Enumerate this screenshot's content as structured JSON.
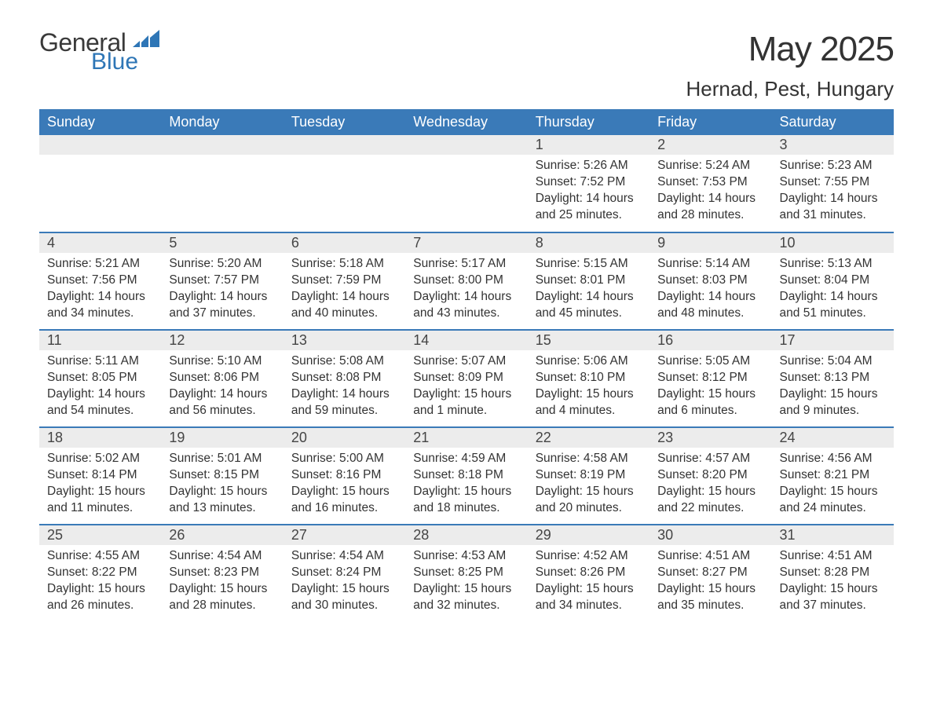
{
  "brand": {
    "word1": "General",
    "word2": "Blue"
  },
  "title": "May 2025",
  "location": "Hernad, Pest, Hungary",
  "colors": {
    "header_bg": "#3a7ab8",
    "header_text": "#ffffff",
    "daynum_bg": "#ececec",
    "daynum_text": "#454545",
    "body_text": "#333333",
    "row_border": "#3a7ab8",
    "brand_accent": "#2e76b6",
    "page_bg": "#ffffff"
  },
  "typography": {
    "month_title_pt": 44,
    "location_pt": 26,
    "weekday_header_pt": 18,
    "daynum_pt": 18,
    "body_pt": 15.5,
    "font_family": "Arial"
  },
  "calendar": {
    "type": "table",
    "columns": [
      "Sunday",
      "Monday",
      "Tuesday",
      "Wednesday",
      "Thursday",
      "Friday",
      "Saturday"
    ],
    "weeks": [
      [
        null,
        null,
        null,
        null,
        {
          "n": "1",
          "sunrise": "5:26 AM",
          "sunset": "7:52 PM",
          "daylight": "14 hours and 25 minutes."
        },
        {
          "n": "2",
          "sunrise": "5:24 AM",
          "sunset": "7:53 PM",
          "daylight": "14 hours and 28 minutes."
        },
        {
          "n": "3",
          "sunrise": "5:23 AM",
          "sunset": "7:55 PM",
          "daylight": "14 hours and 31 minutes."
        }
      ],
      [
        {
          "n": "4",
          "sunrise": "5:21 AM",
          "sunset": "7:56 PM",
          "daylight": "14 hours and 34 minutes."
        },
        {
          "n": "5",
          "sunrise": "5:20 AM",
          "sunset": "7:57 PM",
          "daylight": "14 hours and 37 minutes."
        },
        {
          "n": "6",
          "sunrise": "5:18 AM",
          "sunset": "7:59 PM",
          "daylight": "14 hours and 40 minutes."
        },
        {
          "n": "7",
          "sunrise": "5:17 AM",
          "sunset": "8:00 PM",
          "daylight": "14 hours and 43 minutes."
        },
        {
          "n": "8",
          "sunrise": "5:15 AM",
          "sunset": "8:01 PM",
          "daylight": "14 hours and 45 minutes."
        },
        {
          "n": "9",
          "sunrise": "5:14 AM",
          "sunset": "8:03 PM",
          "daylight": "14 hours and 48 minutes."
        },
        {
          "n": "10",
          "sunrise": "5:13 AM",
          "sunset": "8:04 PM",
          "daylight": "14 hours and 51 minutes."
        }
      ],
      [
        {
          "n": "11",
          "sunrise": "5:11 AM",
          "sunset": "8:05 PM",
          "daylight": "14 hours and 54 minutes."
        },
        {
          "n": "12",
          "sunrise": "5:10 AM",
          "sunset": "8:06 PM",
          "daylight": "14 hours and 56 minutes."
        },
        {
          "n": "13",
          "sunrise": "5:08 AM",
          "sunset": "8:08 PM",
          "daylight": "14 hours and 59 minutes."
        },
        {
          "n": "14",
          "sunrise": "5:07 AM",
          "sunset": "8:09 PM",
          "daylight": "15 hours and 1 minute."
        },
        {
          "n": "15",
          "sunrise": "5:06 AM",
          "sunset": "8:10 PM",
          "daylight": "15 hours and 4 minutes."
        },
        {
          "n": "16",
          "sunrise": "5:05 AM",
          "sunset": "8:12 PM",
          "daylight": "15 hours and 6 minutes."
        },
        {
          "n": "17",
          "sunrise": "5:04 AM",
          "sunset": "8:13 PM",
          "daylight": "15 hours and 9 minutes."
        }
      ],
      [
        {
          "n": "18",
          "sunrise": "5:02 AM",
          "sunset": "8:14 PM",
          "daylight": "15 hours and 11 minutes."
        },
        {
          "n": "19",
          "sunrise": "5:01 AM",
          "sunset": "8:15 PM",
          "daylight": "15 hours and 13 minutes."
        },
        {
          "n": "20",
          "sunrise": "5:00 AM",
          "sunset": "8:16 PM",
          "daylight": "15 hours and 16 minutes."
        },
        {
          "n": "21",
          "sunrise": "4:59 AM",
          "sunset": "8:18 PM",
          "daylight": "15 hours and 18 minutes."
        },
        {
          "n": "22",
          "sunrise": "4:58 AM",
          "sunset": "8:19 PM",
          "daylight": "15 hours and 20 minutes."
        },
        {
          "n": "23",
          "sunrise": "4:57 AM",
          "sunset": "8:20 PM",
          "daylight": "15 hours and 22 minutes."
        },
        {
          "n": "24",
          "sunrise": "4:56 AM",
          "sunset": "8:21 PM",
          "daylight": "15 hours and 24 minutes."
        }
      ],
      [
        {
          "n": "25",
          "sunrise": "4:55 AM",
          "sunset": "8:22 PM",
          "daylight": "15 hours and 26 minutes."
        },
        {
          "n": "26",
          "sunrise": "4:54 AM",
          "sunset": "8:23 PM",
          "daylight": "15 hours and 28 minutes."
        },
        {
          "n": "27",
          "sunrise": "4:54 AM",
          "sunset": "8:24 PM",
          "daylight": "15 hours and 30 minutes."
        },
        {
          "n": "28",
          "sunrise": "4:53 AM",
          "sunset": "8:25 PM",
          "daylight": "15 hours and 32 minutes."
        },
        {
          "n": "29",
          "sunrise": "4:52 AM",
          "sunset": "8:26 PM",
          "daylight": "15 hours and 34 minutes."
        },
        {
          "n": "30",
          "sunrise": "4:51 AM",
          "sunset": "8:27 PM",
          "daylight": "15 hours and 35 minutes."
        },
        {
          "n": "31",
          "sunrise": "4:51 AM",
          "sunset": "8:28 PM",
          "daylight": "15 hours and 37 minutes."
        }
      ]
    ],
    "labels": {
      "sunrise": "Sunrise: ",
      "sunset": "Sunset: ",
      "daylight": "Daylight: "
    }
  }
}
